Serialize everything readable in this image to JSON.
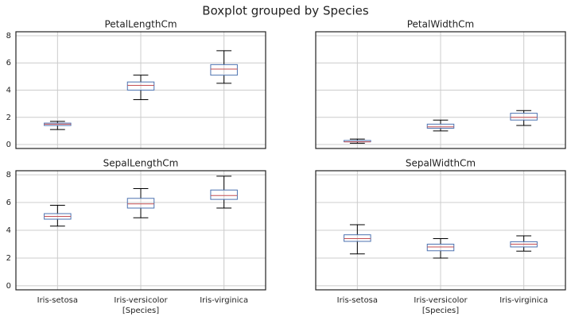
{
  "chart_data": {
    "type": "box",
    "title": "Boxplot grouped by Species",
    "xlabel": "[Species]",
    "categories": [
      "Iris-setosa",
      "Iris-versicolor",
      "Iris-virginica"
    ],
    "ylim": [
      -0.29,
      8.29
    ],
    "yticks": [
      0,
      2,
      4,
      6,
      8
    ],
    "grid": true,
    "box_color": "#4c72b0",
    "median_color": "#c44e52",
    "whisker_color": "#000000",
    "panels": [
      {
        "title": "PetalLengthCm",
        "values": [
          [
            1.1,
            1.4,
            1.5,
            1.575,
            1.7
          ],
          [
            3.3,
            4.0,
            4.35,
            4.6,
            5.1
          ],
          [
            4.5,
            5.1,
            5.55,
            5.875,
            6.9
          ]
        ]
      },
      {
        "title": "PetalWidthCm",
        "values": [
          [
            0.1,
            0.2,
            0.2,
            0.3,
            0.4
          ],
          [
            1.0,
            1.2,
            1.3,
            1.5,
            1.8
          ],
          [
            1.4,
            1.8,
            2.0,
            2.3,
            2.5
          ]
        ]
      },
      {
        "title": "SepalLengthCm",
        "values": [
          [
            4.3,
            4.8,
            5.0,
            5.2,
            5.8
          ],
          [
            4.9,
            5.6,
            5.9,
            6.3,
            7.0
          ],
          [
            5.6,
            6.225,
            6.5,
            6.9,
            7.9
          ]
        ]
      },
      {
        "title": "SepalWidthCm",
        "values": [
          [
            2.3,
            3.2,
            3.4,
            3.675,
            4.4
          ],
          [
            2.0,
            2.525,
            2.8,
            3.0,
            3.4
          ],
          [
            2.5,
            2.8,
            3.0,
            3.175,
            3.6
          ]
        ]
      }
    ]
  }
}
